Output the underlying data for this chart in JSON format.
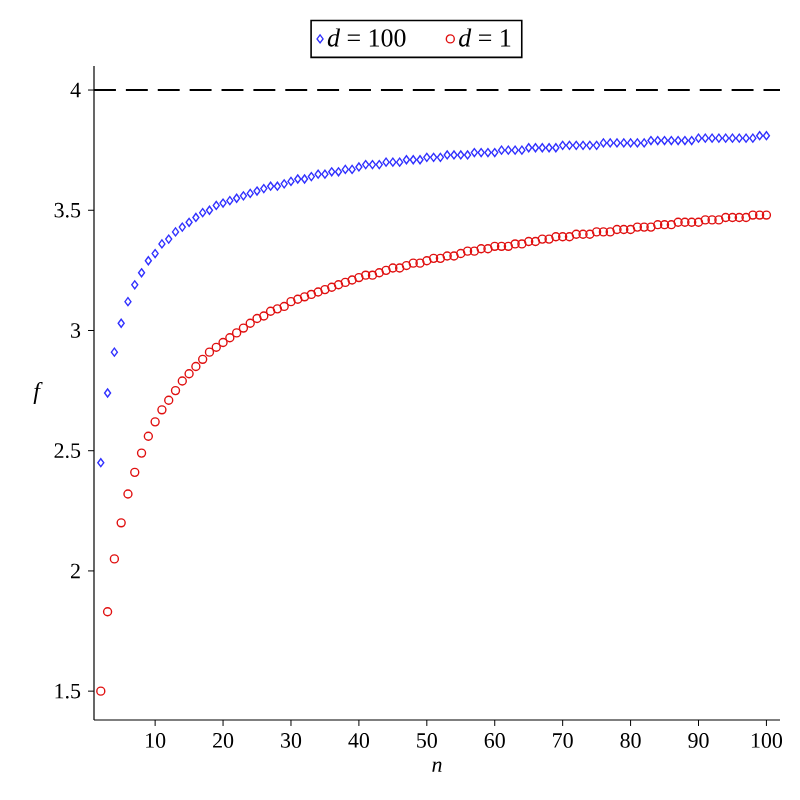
{
  "chart_data": {
    "type": "scatter",
    "xlabel": "n",
    "ylabel": "f",
    "x": [
      2,
      3,
      4,
      5,
      6,
      7,
      8,
      9,
      10,
      11,
      12,
      13,
      14,
      15,
      16,
      17,
      18,
      19,
      20,
      21,
      22,
      23,
      24,
      25,
      26,
      27,
      28,
      29,
      30,
      31,
      32,
      33,
      34,
      35,
      36,
      37,
      38,
      39,
      40,
      41,
      42,
      43,
      44,
      45,
      46,
      47,
      48,
      49,
      50,
      51,
      52,
      53,
      54,
      55,
      56,
      57,
      58,
      59,
      60,
      61,
      62,
      63,
      64,
      65,
      66,
      67,
      68,
      69,
      70,
      71,
      72,
      73,
      74,
      75,
      76,
      77,
      78,
      79,
      80,
      81,
      82,
      83,
      84,
      85,
      86,
      87,
      88,
      89,
      90,
      91,
      92,
      93,
      94,
      95,
      96,
      97,
      98,
      99,
      100
    ],
    "series": [
      {
        "name": "*d* = 100",
        "color": "#3232ff",
        "marker": "diamond",
        "values": [
          2.45,
          2.74,
          2.91,
          3.03,
          3.12,
          3.19,
          3.24,
          3.29,
          3.32,
          3.36,
          3.38,
          3.41,
          3.43,
          3.45,
          3.47,
          3.49,
          3.5,
          3.52,
          3.53,
          3.54,
          3.55,
          3.56,
          3.57,
          3.58,
          3.59,
          3.6,
          3.6,
          3.61,
          3.62,
          3.63,
          3.63,
          3.64,
          3.65,
          3.65,
          3.66,
          3.66,
          3.67,
          3.67,
          3.68,
          3.69,
          3.69,
          3.69,
          3.7,
          3.7,
          3.7,
          3.71,
          3.71,
          3.71,
          3.72,
          3.72,
          3.72,
          3.73,
          3.73,
          3.73,
          3.73,
          3.74,
          3.74,
          3.74,
          3.74,
          3.75,
          3.75,
          3.75,
          3.75,
          3.76,
          3.76,
          3.76,
          3.76,
          3.76,
          3.77,
          3.77,
          3.77,
          3.77,
          3.77,
          3.77,
          3.78,
          3.78,
          3.78,
          3.78,
          3.78,
          3.78,
          3.78,
          3.79,
          3.79,
          3.79,
          3.79,
          3.79,
          3.79,
          3.79,
          3.8,
          3.8,
          3.8,
          3.8,
          3.8,
          3.8,
          3.8,
          3.8,
          3.8,
          3.81,
          3.81
        ]
      },
      {
        "name": "*d* = 1",
        "color": "#e01010",
        "marker": "circle",
        "values": [
          1.5,
          1.83,
          2.05,
          2.2,
          2.32,
          2.41,
          2.49,
          2.56,
          2.62,
          2.67,
          2.71,
          2.75,
          2.79,
          2.82,
          2.85,
          2.88,
          2.91,
          2.93,
          2.95,
          2.97,
          2.99,
          3.01,
          3.03,
          3.05,
          3.06,
          3.08,
          3.09,
          3.1,
          3.12,
          3.13,
          3.14,
          3.15,
          3.16,
          3.17,
          3.18,
          3.19,
          3.2,
          3.21,
          3.22,
          3.23,
          3.23,
          3.24,
          3.25,
          3.26,
          3.26,
          3.27,
          3.28,
          3.28,
          3.29,
          3.3,
          3.3,
          3.31,
          3.31,
          3.32,
          3.33,
          3.33,
          3.34,
          3.34,
          3.35,
          3.35,
          3.35,
          3.36,
          3.36,
          3.37,
          3.37,
          3.38,
          3.38,
          3.39,
          3.39,
          3.39,
          3.4,
          3.4,
          3.4,
          3.41,
          3.41,
          3.41,
          3.42,
          3.42,
          3.42,
          3.43,
          3.43,
          3.43,
          3.44,
          3.44,
          3.44,
          3.45,
          3.45,
          3.45,
          3.45,
          3.46,
          3.46,
          3.46,
          3.47,
          3.47,
          3.47,
          3.47,
          3.48,
          3.48,
          3.48
        ]
      }
    ],
    "xlim": [
      1,
      102
    ],
    "ylim": [
      1.38,
      4.1
    ],
    "xticks": [
      10,
      20,
      30,
      40,
      50,
      60,
      70,
      80,
      90,
      100
    ],
    "yticks": [
      1.5,
      2,
      2.5,
      3,
      3.5,
      4
    ],
    "ref_lines": [
      {
        "axis": "y",
        "value": 4,
        "color": "#000000",
        "line_style": "dashed"
      }
    ],
    "legend": "top",
    "grid": false
  }
}
